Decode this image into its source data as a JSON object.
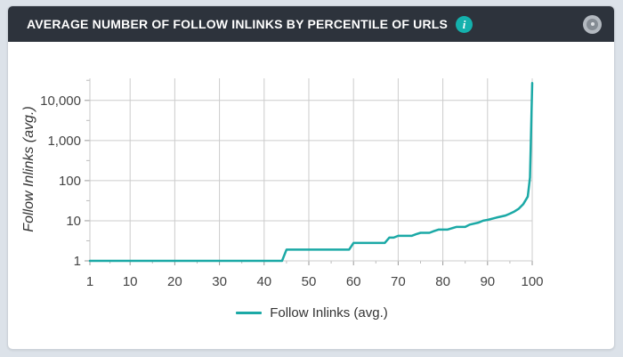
{
  "page": {
    "background": "#dce2e9"
  },
  "header": {
    "title": "AVERAGE NUMBER OF FOLLOW INLINKS BY PERCENTILE OF URLS",
    "background": "#2d333c",
    "info_icon_glyph": "i",
    "info_icon_color": "#14b1ad"
  },
  "chart_data": {
    "type": "line",
    "title": "Average number of follow inlinks by percentile of URLs",
    "xlabel": "",
    "ylabel": "Follow Inlinks (avg.)",
    "x_range": [
      1,
      100
    ],
    "y_scale": "log",
    "y_log_range": [
      0,
      4.55
    ],
    "x_ticks": [
      1,
      10,
      20,
      30,
      40,
      50,
      60,
      70,
      80,
      90,
      100
    ],
    "y_ticks": [
      1,
      10,
      100,
      1000,
      10000
    ],
    "y_tick_labels": [
      "1",
      "10",
      "100",
      "1,000",
      "10,000"
    ],
    "grid": true,
    "legend": {
      "label": "Follow Inlinks (avg.)",
      "position": "bottom"
    },
    "series": [
      {
        "name": "Follow Inlinks (avg.)",
        "color": "#1ba9a6",
        "points": [
          [
            1,
            1
          ],
          [
            44,
            1
          ],
          [
            45,
            1.9
          ],
          [
            59,
            1.9
          ],
          [
            60,
            2.8
          ],
          [
            67,
            2.8
          ],
          [
            68,
            3.8
          ],
          [
            69,
            3.8
          ],
          [
            70,
            4.2
          ],
          [
            73,
            4.2
          ],
          [
            74,
            4.6
          ],
          [
            75,
            5
          ],
          [
            77,
            5
          ],
          [
            78,
            5.5
          ],
          [
            79,
            6
          ],
          [
            81,
            6
          ],
          [
            82,
            6.5
          ],
          [
            83,
            7
          ],
          [
            85,
            7
          ],
          [
            86,
            8
          ],
          [
            88,
            9
          ],
          [
            89,
            10
          ],
          [
            90,
            10.5
          ],
          [
            92,
            12
          ],
          [
            94,
            13.5
          ],
          [
            95,
            15
          ],
          [
            96,
            17
          ],
          [
            97,
            20
          ],
          [
            98,
            26
          ],
          [
            99,
            40
          ],
          [
            99.5,
            120
          ],
          [
            100,
            27000
          ]
        ]
      }
    ],
    "colors": {
      "grid": "#cccccc",
      "axis_line": "#c8c8c8",
      "major_tick": "#999999",
      "minor_tick": "#bbbbbb",
      "tick_text": "#444444"
    }
  }
}
